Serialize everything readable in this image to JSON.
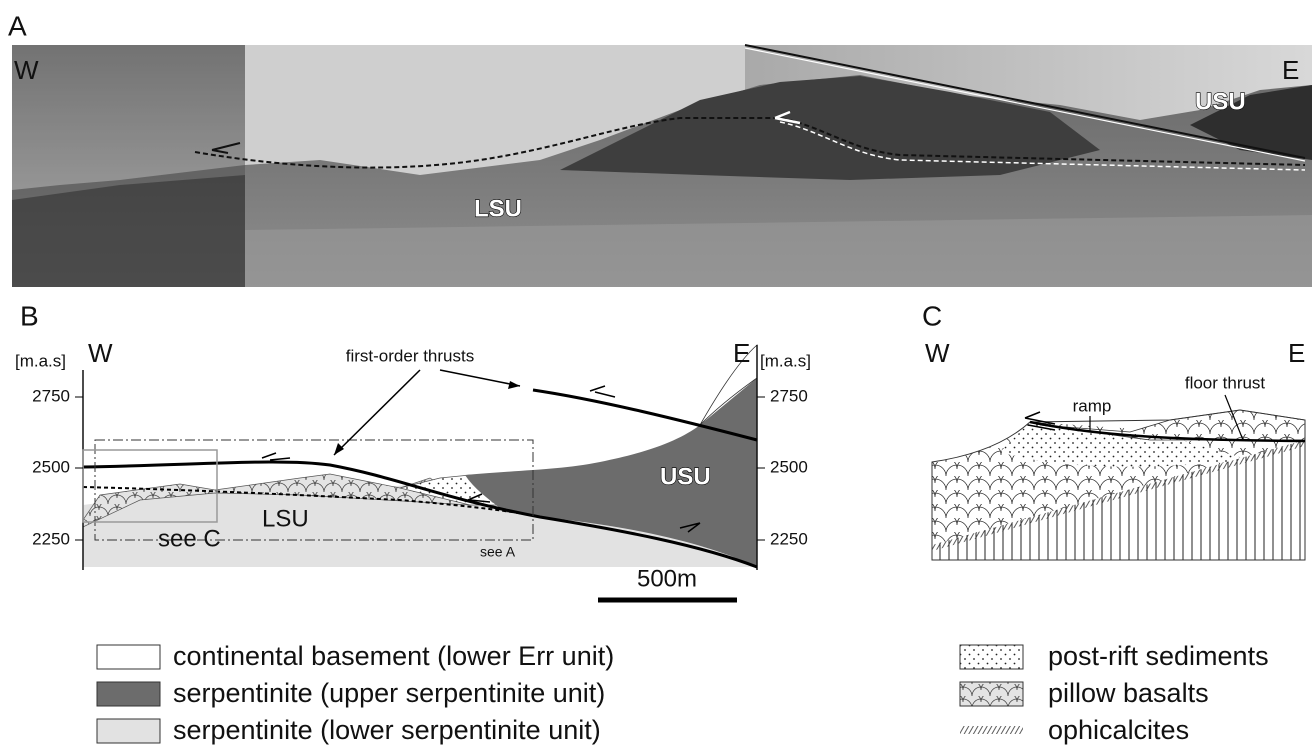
{
  "panels": {
    "a": {
      "label": "A",
      "west": "W",
      "east": "E",
      "upper_unit": "USU",
      "lower_unit": "LSU"
    },
    "b": {
      "label": "B",
      "west": "W",
      "east": "E",
      "left_axis_title": "[m.a.s]",
      "right_axis_title": "[m.a.s]",
      "left_elevations": [
        "2750",
        "2500",
        "2250"
      ],
      "right_elevations": [
        "2750",
        "2500",
        "2250"
      ],
      "annotation": "first-order thrusts",
      "lower_unit": "LSU",
      "upper_unit": "USU",
      "see_c": "see C",
      "see_a": "see A",
      "scale_bar": "500m"
    },
    "c": {
      "label": "C",
      "west": "W",
      "east": "E",
      "ramp": "ramp",
      "floor_thrust": "floor thrust"
    }
  },
  "legend": {
    "left": [
      "continental basement (lower Err unit)",
      "serpentinite (upper serpentinite unit)",
      "serpentinite (lower serpentinite unit)"
    ],
    "right": [
      "post-rift sediments",
      "pillow basalts",
      "ophicalcites"
    ]
  }
}
